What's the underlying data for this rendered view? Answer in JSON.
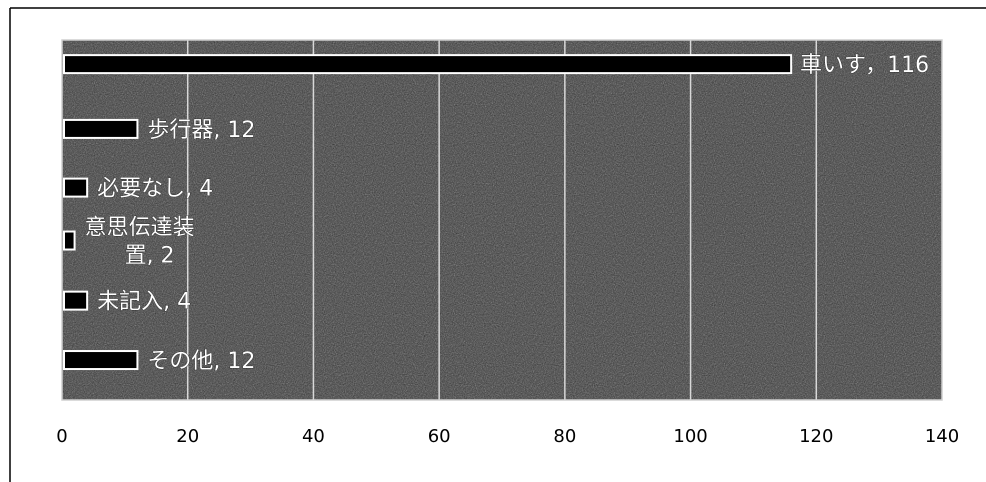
{
  "chart_data": {
    "type": "bar",
    "orientation": "horizontal",
    "categories": [
      "車いす",
      "歩行器",
      "必要なし",
      "意思伝達装置",
      "未記入",
      "その他"
    ],
    "values": [
      116,
      12,
      4,
      2,
      4,
      12
    ],
    "data_labels": [
      "車いす，116",
      "歩行器, 12",
      "必要なし, 4",
      "意思伝達装置, 2",
      "未記入, 4",
      "その他, 12"
    ],
    "data_label_lines": [
      [
        "車いす，116"
      ],
      [
        "歩行器, 12"
      ],
      [
        "必要なし, 4"
      ],
      [
        "意思伝達装",
        "置, 2"
      ],
      [
        "未記入, 4"
      ],
      [
        "その他, 12"
      ]
    ],
    "x_ticks": [
      "0",
      "20",
      "40",
      "60",
      "80",
      "100",
      "120",
      "140"
    ],
    "xlim": [
      0,
      140
    ],
    "grid": true,
    "legend": "none",
    "title": "",
    "xlabel": "",
    "ylabel": "",
    "colors": {
      "plot_background": "#3c3c3c",
      "bar_fill": "#000000",
      "bar_outline": "#ffffff",
      "gridline": "#d8d8d8"
    }
  }
}
